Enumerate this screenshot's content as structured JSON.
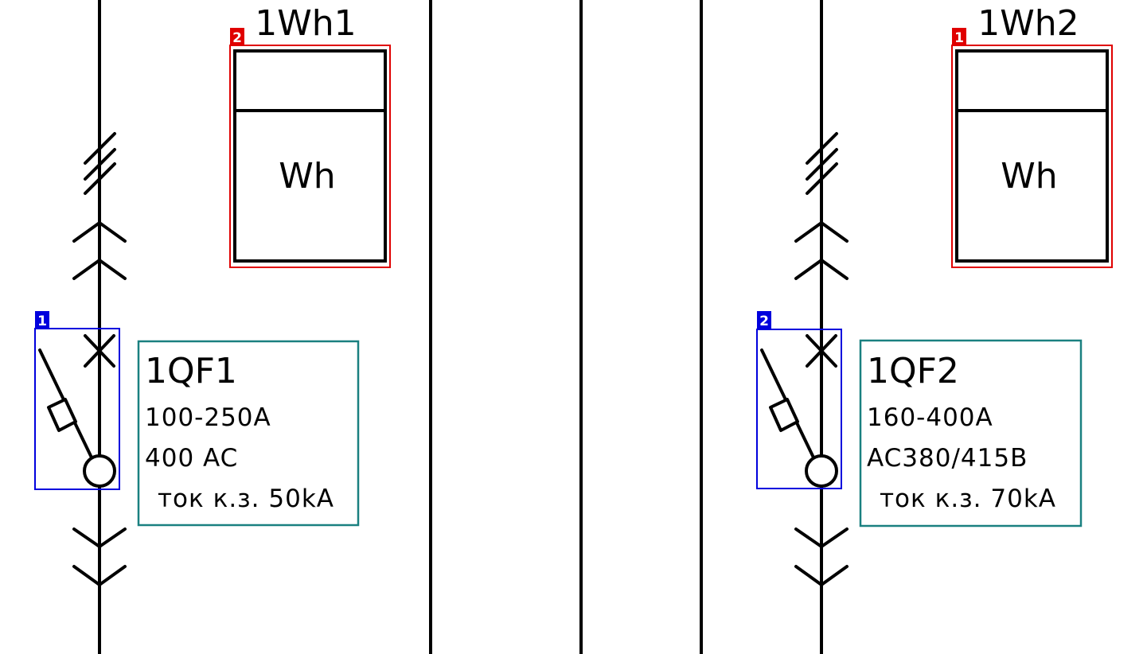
{
  "meters": [
    {
      "id": "meter-1",
      "label": "1Wh1",
      "symbol": "Wh",
      "marker": "2",
      "marker_color": "#e00000"
    },
    {
      "id": "meter-2",
      "label": "1Wh2",
      "symbol": "Wh",
      "marker": "1",
      "marker_color": "#e00000"
    }
  ],
  "breakers": [
    {
      "id": "breaker-1",
      "name": "1QF1",
      "rating": "100-250A",
      "voltage": "400 AC",
      "short_circuit": "ток к.з. 50kA",
      "marker": "1",
      "marker_color": "#0000dd",
      "info_box_color": "#1a8080"
    },
    {
      "id": "breaker-2",
      "name": "1QF2",
      "rating": "160-400A",
      "voltage": "AC380/415B",
      "short_circuit": "ток к.з. 70kA",
      "marker": "2",
      "marker_color": "#0000dd",
      "info_box_color": "#1a8080"
    }
  ]
}
